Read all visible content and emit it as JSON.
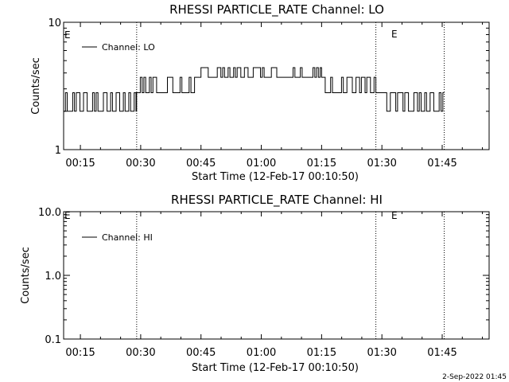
{
  "footer_timestamp": "2-Sep-2022 01:45",
  "chart_data": [
    {
      "type": "line",
      "title": "RHESSI PARTICLE_RATE Channel: LO",
      "xlabel": "Start Time (12-Feb-17 00:10:50)",
      "ylabel": "Counts/sec",
      "yscale": "log",
      "xlim_minutes": [
        10.83,
        116.67
      ],
      "ylim": [
        1,
        10
      ],
      "x_tick_labels": [
        "00:15",
        "00:30",
        "00:45",
        "01:00",
        "01:15",
        "01:30",
        "01:45"
      ],
      "x_tick_minutes": [
        15,
        30,
        45,
        60,
        75,
        90,
        105
      ],
      "y_tick_labels": [
        "1",
        "10"
      ],
      "y_tick_values": [
        1,
        10
      ],
      "legend": {
        "position": "top-left",
        "entries": [
          "Channel: LO"
        ]
      },
      "event_lines_minutes": [
        29.0,
        88.5,
        105.5
      ],
      "event_labels": [
        "E",
        "E"
      ],
      "series": [
        {
          "name": "Channel: LO",
          "segments": [
            {
              "x": [
                10.83,
                29.0
              ],
              "values": [
                2.0,
                2.8
              ],
              "pattern": "alternate"
            },
            {
              "x": [
                29.0,
                45.0
              ],
              "values": [
                2.8,
                3.7
              ],
              "pattern": "alternate"
            },
            {
              "x": [
                45.0,
                58.0
              ],
              "values": [
                3.7,
                4.4
              ],
              "pattern": "alternate"
            },
            {
              "x": [
                58.0,
                75.0
              ],
              "values": [
                3.7,
                4.4
              ],
              "pattern": "alternate"
            },
            {
              "x": [
                75.0,
                88.5
              ],
              "values": [
                2.8,
                3.7
              ],
              "pattern": "alternate"
            },
            {
              "x": [
                88.5,
                105.5
              ],
              "values": [
                2.0,
                2.8
              ],
              "pattern": "alternate"
            }
          ]
        }
      ]
    },
    {
      "type": "line",
      "title": "RHESSI PARTICLE_RATE Channel: HI",
      "xlabel": "Start Time (12-Feb-17 00:10:50)",
      "ylabel": "Counts/sec",
      "yscale": "log",
      "xlim_minutes": [
        10.83,
        116.67
      ],
      "ylim": [
        0.1,
        10
      ],
      "x_tick_labels": [
        "00:15",
        "00:30",
        "00:45",
        "01:00",
        "01:15",
        "01:30",
        "01:45"
      ],
      "x_tick_minutes": [
        15,
        30,
        45,
        60,
        75,
        90,
        105
      ],
      "y_tick_labels": [
        "0.1",
        "1.0",
        "10.0"
      ],
      "y_tick_values": [
        0.1,
        1,
        10
      ],
      "legend": {
        "position": "top-left",
        "entries": [
          "Channel: HI"
        ]
      },
      "event_lines_minutes": [
        29.0,
        88.5,
        105.5
      ],
      "event_labels": [
        "E",
        "E"
      ],
      "series": [
        {
          "name": "Channel: HI",
          "segments": []
        }
      ]
    }
  ]
}
